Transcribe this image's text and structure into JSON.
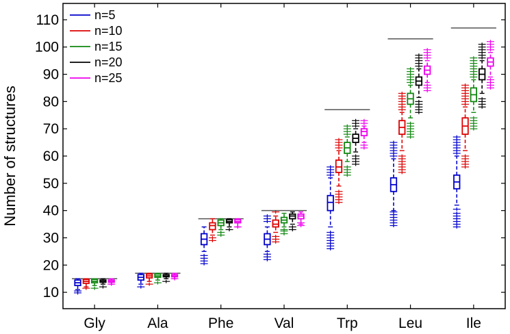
{
  "chart_data": {
    "type": "boxplot",
    "title": "",
    "xlabel": "",
    "ylabel": "Number of structures",
    "ylim": [
      4,
      116
    ],
    "yticks": [
      10,
      20,
      30,
      40,
      50,
      60,
      70,
      80,
      90,
      100,
      110
    ],
    "grid": false,
    "legend_position": "top-left",
    "categories": [
      "Gly",
      "Ala",
      "Phe",
      "Val",
      "Trp",
      "Leu",
      "Ile"
    ],
    "series": [
      {
        "name": "n=5",
        "color": "#0000cc",
        "boxes": [
          {
            "whisker_low": 11,
            "q1": 12.5,
            "median": 13.5,
            "q3": 14.5,
            "whisker_high": 15,
            "outliers": [
              9.8,
              10.5
            ]
          },
          {
            "whisker_low": 13,
            "q1": 14.5,
            "median": 15.5,
            "q3": 16.5,
            "whisker_high": 17,
            "outliers": [
              12
            ]
          },
          {
            "whisker_low": 25,
            "q1": 27.5,
            "median": 29.5,
            "q3": 31.5,
            "whisker_high": 34,
            "outliers": [
              20.5,
              21.5,
              22.5,
              23.5
            ]
          },
          {
            "whisker_low": 25,
            "q1": 27.5,
            "median": 29.5,
            "q3": 31.5,
            "whisker_high": 34,
            "outliers": [
              22,
              23,
              24,
              36,
              37,
              38
            ]
          },
          {
            "whisker_low": 34,
            "q1": 40,
            "median": 43,
            "q3": 45.5,
            "whisker_high": 52,
            "outliers": [
              26,
              27,
              28,
              29,
              30,
              31,
              32,
              53,
              54,
              55,
              56
            ]
          },
          {
            "whisker_low": 40,
            "q1": 47,
            "median": 49.5,
            "q3": 52,
            "whisker_high": 59,
            "outliers": [
              34.5,
              35.5,
              36.5,
              37.5,
              38.5,
              39.5,
              60,
              61,
              62,
              63,
              64,
              65
            ]
          },
          {
            "whisker_low": 42,
            "q1": 48,
            "median": 50.5,
            "q3": 53,
            "whisker_high": 60,
            "outliers": [
              34,
              35,
              36,
              37,
              38,
              39,
              40.5,
              61,
              62,
              63,
              64,
              65,
              66,
              67
            ]
          }
        ]
      },
      {
        "name": "n=10",
        "color": "#dd0000",
        "boxes": [
          {
            "whisker_low": 12,
            "q1": 13.3,
            "median": 14,
            "q3": 14.7,
            "whisker_high": 15,
            "outliers": [
              11.5
            ]
          },
          {
            "whisker_low": 14,
            "q1": 15.3,
            "median": 16,
            "q3": 16.7,
            "whisker_high": 17,
            "outliers": [
              13
            ]
          },
          {
            "whisker_low": 31,
            "q1": 33,
            "median": 34.5,
            "q3": 35.5,
            "whisker_high": 37,
            "outliers": [
              29,
              30
            ]
          },
          {
            "whisker_low": 32,
            "q1": 34,
            "median": 35,
            "q3": 36.5,
            "whisker_high": 38,
            "outliers": [
              28.5,
              29.5,
              30.5,
              39.5
            ]
          },
          {
            "whisker_low": 49,
            "q1": 54,
            "median": 56,
            "q3": 58.5,
            "whisker_high": 62,
            "outliers": [
              43,
              44,
              45,
              46,
              47,
              63,
              64,
              65,
              66
            ]
          },
          {
            "whisker_low": 62,
            "q1": 68,
            "median": 70.5,
            "q3": 73,
            "whisker_high": 76,
            "outliers": [
              54,
              55,
              56,
              57,
              58,
              59,
              60,
              77,
              78,
              79,
              80,
              81,
              82,
              83
            ]
          },
          {
            "whisker_low": 62,
            "q1": 68,
            "median": 71,
            "q3": 74,
            "whisker_high": 78,
            "outliers": [
              56,
              57,
              58,
              59,
              60,
              79,
              80,
              81,
              82,
              83,
              84,
              85,
              86
            ]
          }
        ]
      },
      {
        "name": "n=15",
        "color": "#118811",
        "boxes": [
          {
            "whisker_low": 12.5,
            "q1": 13.5,
            "median": 14,
            "q3": 14.7,
            "whisker_high": 15,
            "outliers": [
              11.5
            ]
          },
          {
            "whisker_low": 14.5,
            "q1": 15.5,
            "median": 16,
            "q3": 16.7,
            "whisker_high": 17,
            "outliers": [
              13.5
            ]
          },
          {
            "whisker_low": 33,
            "q1": 34.5,
            "median": 35.5,
            "q3": 36.5,
            "whisker_high": 37,
            "outliers": [
              31,
              32
            ]
          },
          {
            "whisker_low": 34,
            "q1": 35.5,
            "median": 36.5,
            "q3": 37.5,
            "whisker_high": 39,
            "outliers": [
              31.5,
              32.5,
              33
            ]
          },
          {
            "whisker_low": 58,
            "q1": 61,
            "median": 63,
            "q3": 65,
            "whisker_high": 67,
            "outliers": [
              53,
              54,
              55,
              56,
              68,
              69,
              70,
              71
            ]
          },
          {
            "whisker_low": 74,
            "q1": 79,
            "median": 81,
            "q3": 83,
            "whisker_high": 86,
            "outliers": [
              67,
              68,
              69,
              70,
              71,
              72,
              87,
              88,
              89,
              90,
              91,
              92
            ]
          },
          {
            "whisker_low": 76,
            "q1": 80,
            "median": 82.5,
            "q3": 85,
            "whisker_high": 88,
            "outliers": [
              70,
              71,
              72,
              73,
              74,
              89,
              90,
              91,
              92,
              93,
              94,
              95,
              96
            ]
          }
        ]
      },
      {
        "name": "n=20",
        "color": "#000000",
        "boxes": [
          {
            "whisker_low": 13,
            "q1": 13.7,
            "median": 14,
            "q3": 14.5,
            "whisker_high": 15,
            "outliers": [
              12
            ]
          },
          {
            "whisker_low": 15,
            "q1": 15.7,
            "median": 16,
            "q3": 16.5,
            "whisker_high": 17,
            "outliers": [
              14
            ]
          },
          {
            "whisker_low": 34,
            "q1": 35.5,
            "median": 36,
            "q3": 36.7,
            "whisker_high": 37,
            "outliers": [
              33
            ]
          },
          {
            "whisker_low": 35,
            "q1": 37,
            "median": 38,
            "q3": 38.7,
            "whisker_high": 39.5,
            "outliers": [
              33,
              34
            ]
          },
          {
            "whisker_low": 61.5,
            "q1": 65,
            "median": 66.5,
            "q3": 68,
            "whisker_high": 70,
            "outliers": [
              57,
              58,
              59,
              60,
              71,
              72,
              73
            ]
          },
          {
            "whisker_low": 81.5,
            "q1": 86,
            "median": 87.5,
            "q3": 89,
            "whisker_high": 92,
            "outliers": [
              76,
              77,
              78,
              79,
              80,
              93,
              94,
              95,
              96,
              97
            ]
          },
          {
            "whisker_low": 83,
            "q1": 88,
            "median": 90,
            "q3": 92,
            "whisker_high": 95,
            "outliers": [
              78,
              79,
              80,
              81,
              96,
              97,
              98,
              99,
              100,
              101
            ]
          }
        ]
      },
      {
        "name": "n=25",
        "color": "#ee00ee",
        "boxes": [
          {
            "whisker_low": 13,
            "q1": 13.7,
            "median": 14,
            "q3": 14.5,
            "whisker_high": 15,
            "outliers": [
              13
            ]
          },
          {
            "whisker_low": 15,
            "q1": 15.7,
            "median": 16,
            "q3": 16.5,
            "whisker_high": 17,
            "outliers": [
              15
            ]
          },
          {
            "whisker_low": 34,
            "q1": 35.5,
            "median": 36,
            "q3": 36.7,
            "whisker_high": 37,
            "outliers": [
              34
            ]
          },
          {
            "whisker_low": 35,
            "q1": 37,
            "median": 38,
            "q3": 38.7,
            "whisker_high": 39.5,
            "outliers": [
              34.5,
              35.5
            ]
          },
          {
            "whisker_low": 65,
            "q1": 67.5,
            "median": 69,
            "q3": 70,
            "whisker_high": 71,
            "outliers": [
              63,
              64,
              72,
              73
            ]
          },
          {
            "whisker_low": 87,
            "q1": 90,
            "median": 91.5,
            "q3": 93,
            "whisker_high": 95,
            "outliers": [
              84,
              85,
              86,
              96,
              97,
              98,
              99
            ]
          },
          {
            "whisker_low": 89,
            "q1": 93,
            "median": 94.5,
            "q3": 96,
            "whisker_high": 98,
            "outliers": [
              85,
              86,
              87,
              88,
              99,
              100,
              101,
              102
            ]
          }
        ]
      }
    ],
    "reference_lines": [
      {
        "category": "Gly",
        "value": 15
      },
      {
        "category": "Ala",
        "value": 17
      },
      {
        "category": "Phe",
        "value": 37
      },
      {
        "category": "Val",
        "value": 40
      },
      {
        "category": "Trp",
        "value": 77
      },
      {
        "category": "Leu",
        "value": 103
      },
      {
        "category": "Ile",
        "value": 107
      }
    ]
  }
}
